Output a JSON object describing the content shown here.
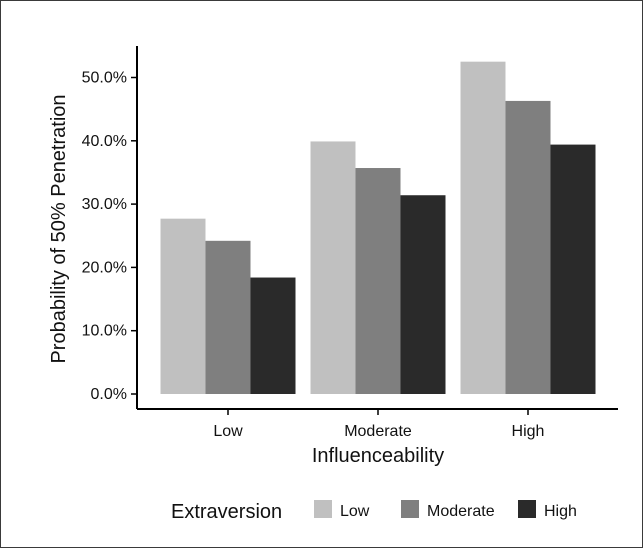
{
  "chart_data": {
    "type": "bar",
    "title": "",
    "xlabel": "Influenceability",
    "ylabel": "Probability of 50% Penetration",
    "categories": [
      "Low",
      "Moderate",
      "High"
    ],
    "series": [
      {
        "name": "Low",
        "values": [
          27.7,
          39.9,
          52.5
        ],
        "color": "#c0c0c0"
      },
      {
        "name": "Moderate",
        "values": [
          24.2,
          35.7,
          46.3
        ],
        "color": "#7f7f7f"
      },
      {
        "name": "High",
        "values": [
          18.4,
          31.4,
          39.4
        ],
        "color": "#2a2a2a"
      }
    ],
    "ylim": [
      0,
      55
    ],
    "y_ticks": [
      "0.0%",
      "10.0%",
      "20.0%",
      "30.0%",
      "40.0%",
      "50.0%"
    ],
    "y_tick_values": [
      0,
      10,
      20,
      30,
      40,
      50
    ],
    "grid": false,
    "legend": {
      "title": "Extraversion",
      "position": "bottom",
      "items": [
        "Low",
        "Moderate",
        "High"
      ]
    }
  }
}
